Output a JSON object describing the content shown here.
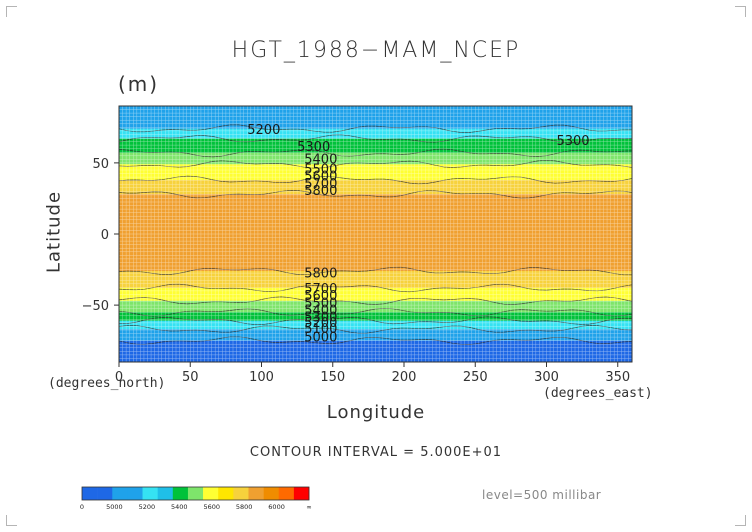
{
  "chart_data": {
    "type": "heatmap",
    "title": "HGT_1988−MAM_NCEP",
    "units": "(m)",
    "xlabel": "Longitude",
    "ylabel": "Latitude",
    "x_unit_note": "(degrees_east)",
    "y_unit_note": "(degrees_north)",
    "xlim": [
      0,
      360
    ],
    "ylim": [
      -90,
      90
    ],
    "x_ticks": [
      0,
      50,
      100,
      150,
      200,
      250,
      300,
      350
    ],
    "y_ticks": [
      -50,
      0,
      50
    ],
    "contour_interval_text": "CONTOUR INTERVAL = 5.000E+01",
    "level_text": "level=500 millibar",
    "grid": true,
    "bands": [
      {
        "lat_from": 90,
        "lat_to": 74,
        "color": "#1fa2ea"
      },
      {
        "lat_from": 74,
        "lat_to": 67,
        "color": "#35e2f3"
      },
      {
        "lat_from": 67,
        "lat_to": 57,
        "color": "#00c23a"
      },
      {
        "lat_from": 57,
        "lat_to": 49,
        "color": "#7ee56b"
      },
      {
        "lat_from": 49,
        "lat_to": 38,
        "color": "#ffff33"
      },
      {
        "lat_from": 38,
        "lat_to": 28,
        "color": "#f7d23c"
      },
      {
        "lat_from": 28,
        "lat_to": -26,
        "color": "#f0a030"
      },
      {
        "lat_from": -26,
        "lat_to": -38,
        "color": "#f7d23c"
      },
      {
        "lat_from": -38,
        "lat_to": -47,
        "color": "#ffff33"
      },
      {
        "lat_from": -47,
        "lat_to": -55,
        "color": "#7ee56b"
      },
      {
        "lat_from": -55,
        "lat_to": -61,
        "color": "#00c23a"
      },
      {
        "lat_from": -61,
        "lat_to": -67,
        "color": "#35e2f3"
      },
      {
        "lat_from": -67,
        "lat_to": -75,
        "color": "#1fa2ea"
      },
      {
        "lat_from": -75,
        "lat_to": -90,
        "color": "#1e68e6"
      }
    ],
    "contour_labels": [
      {
        "text": "5200",
        "lon": 90,
        "lat": 74
      },
      {
        "text": "5300",
        "lon": 125,
        "lat": 62
      },
      {
        "text": "5300",
        "lon": 307,
        "lat": 66
      },
      {
        "text": "5400",
        "lon": 130,
        "lat": 53
      },
      {
        "text": "5500",
        "lon": 130,
        "lat": 46
      },
      {
        "text": "5600",
        "lon": 130,
        "lat": 41
      },
      {
        "text": "5700",
        "lon": 130,
        "lat": 36
      },
      {
        "text": "5800",
        "lon": 130,
        "lat": 31
      },
      {
        "text": "5800",
        "lon": 130,
        "lat": -27
      },
      {
        "text": "5700",
        "lon": 130,
        "lat": -38
      },
      {
        "text": "5600",
        "lon": 130,
        "lat": -43
      },
      {
        "text": "5500",
        "lon": 130,
        "lat": -48
      },
      {
        "text": "5400",
        "lon": 130,
        "lat": -53
      },
      {
        "text": "5300",
        "lon": 130,
        "lat": -58
      },
      {
        "text": "5200",
        "lon": 130,
        "lat": -62
      },
      {
        "text": "5100",
        "lon": 130,
        "lat": -66
      },
      {
        "text": "5000",
        "lon": 130,
        "lat": -72
      }
    ],
    "colorbar": {
      "colors": [
        "#1e68e6",
        "#1e68e6",
        "#1fa2ea",
        "#1fa2ea",
        "#35e2f3",
        "#1fbfe8",
        "#00c23a",
        "#7ee56b",
        "#ffff33",
        "#ffe600",
        "#f7d23c",
        "#f0a030",
        "#f08c00",
        "#ff6a00",
        "#ff0000"
      ],
      "labels": [
        "0",
        "5000",
        "5200",
        "5400",
        "5600",
        "5800",
        "6000",
        "∞"
      ]
    }
  }
}
